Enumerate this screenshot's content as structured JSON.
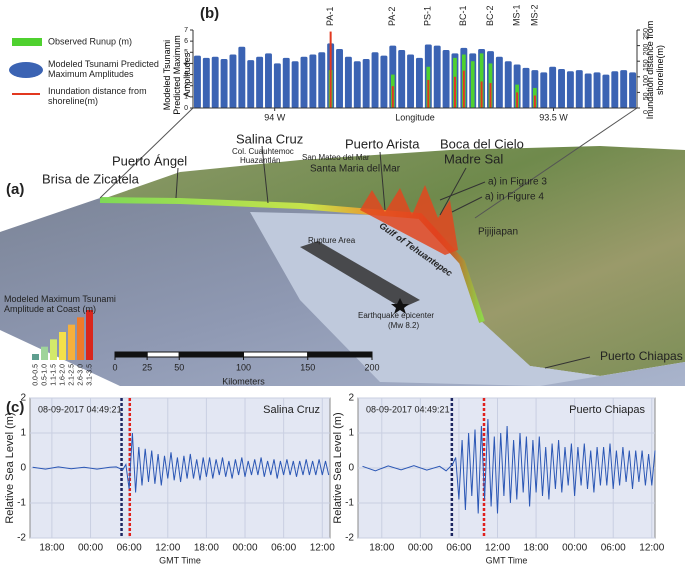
{
  "panel_labels": {
    "a": "(a)",
    "b": "(b)",
    "c": "(c)"
  },
  "chart_data": [
    {
      "type": "bar",
      "categories": [
        null,
        null,
        null,
        null,
        null,
        null,
        null,
        null,
        null,
        null,
        null,
        null,
        null,
        null,
        null,
        "PA-1",
        null,
        null,
        null,
        null,
        null,
        null,
        "PA-2",
        null,
        null,
        null,
        "PS-1",
        null,
        null,
        null,
        "BC-1",
        null,
        null,
        "BC-2",
        null,
        null,
        "MS-1",
        null,
        "MS-2",
        null,
        null,
        null,
        null,
        null,
        null,
        null,
        null,
        null,
        null,
        null
      ],
      "series": [
        {
          "name": "Observed Runup (m)",
          "color": "#4fd12f",
          "values": [
            null,
            null,
            null,
            null,
            null,
            null,
            null,
            null,
            null,
            null,
            null,
            null,
            null,
            null,
            null,
            3.4,
            null,
            null,
            null,
            null,
            null,
            null,
            3.0,
            null,
            null,
            null,
            3.7,
            null,
            null,
            4.5,
            4.8,
            4.2,
            4.9,
            4.0,
            null,
            null,
            2.1,
            null,
            1.8,
            null,
            null,
            null,
            null,
            null,
            null,
            null,
            null,
            null,
            null,
            null
          ]
        },
        {
          "name": "Modeled Tsunami Predicted Maximum Amplitudes",
          "color": "#3b63b3",
          "values": [
            4.7,
            4.5,
            4.6,
            4.4,
            4.8,
            5.5,
            4.3,
            4.6,
            4.9,
            4.0,
            4.5,
            4.2,
            4.6,
            4.8,
            5.0,
            5.8,
            5.3,
            4.6,
            4.2,
            4.4,
            5.0,
            4.7,
            5.6,
            5.2,
            4.8,
            4.5,
            5.7,
            5.6,
            5.2,
            4.9,
            5.4,
            4.9,
            5.3,
            5.1,
            4.6,
            4.2,
            3.9,
            3.6,
            3.4,
            3.2,
            3.7,
            3.5,
            3.3,
            3.4,
            3.1,
            3.2,
            3.0,
            3.3,
            3.4,
            3.2
          ]
        },
        {
          "name": "Inundation distance from shoreline(m)",
          "color": "#e2381f",
          "axis": "y2",
          "values": [
            null,
            null,
            null,
            null,
            null,
            null,
            null,
            null,
            null,
            null,
            null,
            null,
            null,
            null,
            null,
            245,
            null,
            null,
            null,
            null,
            null,
            null,
            70,
            null,
            null,
            null,
            90,
            null,
            null,
            100,
            120,
            null,
            85,
            80,
            null,
            null,
            50,
            null,
            40,
            null,
            null,
            null,
            null,
            null,
            null,
            null,
            null,
            null,
            null,
            null
          ]
        }
      ],
      "ylim": [
        0,
        7
      ],
      "yticks": [
        0,
        1,
        2,
        3,
        4,
        5,
        6,
        7
      ],
      "y2lim": [
        0,
        250
      ],
      "y2ticks": [
        0,
        50,
        100,
        150,
        200,
        250
      ],
      "xticks": [
        {
          "value": 8.7,
          "label": "94 W"
        },
        {
          "value": 40.1,
          "label": "93.5 W"
        }
      ],
      "xlabel": "Longitude",
      "ylabel": "Modeled Tsunami Predicted Maximum Amplitudes",
      "y2label": "Inundation distance from shoreline(m)"
    },
    {
      "type": "line",
      "title": "Salina Cruz",
      "annotation": "08-09-2017 04:49:21",
      "color": "#2b57b5",
      "grid": true,
      "x": [
        -3,
        -1,
        1,
        3,
        5,
        7,
        9,
        10,
        11,
        11.5,
        12,
        12.5,
        13,
        13.5,
        14,
        14.5,
        15,
        15.5,
        16,
        16.5,
        17,
        17.5,
        18,
        18.5,
        19,
        19.5,
        20,
        20.5,
        21,
        21.5,
        22,
        22.5,
        23,
        23.5,
        24,
        24.5,
        25,
        25.5,
        26,
        26.5,
        27,
        27.5,
        28,
        28.5,
        29,
        29.5,
        30,
        30.5,
        31,
        31.5,
        32,
        32.5,
        33,
        33.5,
        34,
        34.5,
        35,
        35.5,
        36,
        36.5,
        37,
        37.5,
        38,
        38.5,
        39,
        39.5,
        40,
        40.5,
        41,
        41.5,
        42,
        42.5,
        43
      ],
      "values": [
        0.02,
        -0.03,
        0.03,
        -0.02,
        0.02,
        -0.03,
        0.02,
        0.03,
        -0.05,
        0.1,
        -0.6,
        1.0,
        -0.7,
        0.6,
        -0.5,
        0.55,
        -0.4,
        0.5,
        -0.45,
        0.4,
        -0.5,
        0.35,
        -0.3,
        0.45,
        -0.35,
        0.3,
        -0.4,
        0.35,
        -0.3,
        0.4,
        -0.3,
        0.25,
        -0.35,
        0.3,
        -0.25,
        0.3,
        -0.3,
        0.25,
        -0.2,
        0.3,
        -0.25,
        0.2,
        -0.3,
        0.25,
        -0.2,
        0.3,
        -0.25,
        0.2,
        -0.2,
        0.25,
        -0.2,
        0.3,
        -0.25,
        0.2,
        -0.2,
        0.25,
        -0.3,
        0.2,
        -0.2,
        0.25,
        -0.2,
        0.2,
        -0.25,
        0.2,
        -0.2,
        0.25,
        -0.2,
        0.2,
        -0.2,
        0.25,
        -0.2,
        0.2,
        -0.2
      ],
      "xlim": [
        -3.4,
        43.2
      ],
      "xticks": [
        {
          "value": 0,
          "label": "18:00"
        },
        {
          "value": 6,
          "label": "00:00"
        },
        {
          "value": 12,
          "label": "06:00"
        },
        {
          "value": 18,
          "label": "12:00"
        },
        {
          "value": 24,
          "label": "18:00"
        },
        {
          "value": 30,
          "label": "00:00"
        },
        {
          "value": 36,
          "label": "06:00"
        },
        {
          "value": 42,
          "label": "12:00"
        }
      ],
      "ylim": [
        -2,
        2
      ],
      "yticks": [
        -2,
        -1,
        0,
        1,
        2
      ],
      "vlines": [
        {
          "x": 10.82,
          "color": "#1b2560"
        },
        {
          "x": 12.1,
          "color": "#e0201c"
        }
      ],
      "xlabel": "GMT Time",
      "ylabel": "Relative Sea Level (m)"
    },
    {
      "type": "line",
      "title": "Puerto Chiapas",
      "annotation": "08-09-2017 04:49:21",
      "color": "#2b57b5",
      "grid": true,
      "x": [
        -3,
        -1,
        1,
        3,
        5,
        7,
        9,
        10,
        11,
        11.5,
        12,
        12.5,
        13,
        13.5,
        14,
        14.5,
        15,
        15.5,
        16,
        16.5,
        17,
        17.5,
        18,
        18.5,
        19,
        19.5,
        20,
        20.5,
        21,
        21.5,
        22,
        22.5,
        23,
        23.5,
        24,
        24.5,
        25,
        25.5,
        26,
        26.5,
        27,
        27.5,
        28,
        28.5,
        29,
        29.5,
        30,
        30.5,
        31,
        31.5,
        32,
        32.5,
        33,
        33.5,
        34,
        34.5,
        35,
        35.5,
        36,
        36.5,
        37,
        37.5,
        38,
        38.5,
        39,
        39.5,
        40,
        40.5,
        41,
        41.5,
        42,
        42.5
      ],
      "values": [
        0.05,
        -0.08,
        0.06,
        -0.05,
        0.07,
        -0.06,
        0.05,
        -0.08,
        0.1,
        0.3,
        -0.9,
        0.8,
        -1.2,
        1.0,
        -0.8,
        1.1,
        -1.3,
        1.2,
        -0.9,
        1.4,
        -1.1,
        0.9,
        -1.3,
        1.0,
        -0.8,
        1.2,
        -1.0,
        0.8,
        -0.9,
        1.0,
        -0.7,
        0.9,
        -1.1,
        0.8,
        -0.7,
        0.9,
        -0.8,
        0.6,
        -0.9,
        0.7,
        -0.6,
        0.8,
        -0.7,
        0.6,
        -0.5,
        0.7,
        -0.8,
        0.6,
        -0.5,
        0.7,
        -0.6,
        0.5,
        -0.7,
        0.6,
        -0.5,
        0.6,
        -0.5,
        0.7,
        -0.6,
        0.5,
        -0.5,
        0.6,
        -0.4,
        0.5,
        -0.6,
        0.5,
        -0.4,
        0.5,
        -0.5,
        0.4,
        -0.5,
        0.5
      ],
      "xlim": [
        -3.7,
        42.5
      ],
      "xticks": [
        {
          "value": 0,
          "label": "18:00"
        },
        {
          "value": 6,
          "label": "00:00"
        },
        {
          "value": 12,
          "label": "06:00"
        },
        {
          "value": 18,
          "label": "12:00"
        },
        {
          "value": 24,
          "label": "18:00"
        },
        {
          "value": 30,
          "label": "00:00"
        },
        {
          "value": 36,
          "label": "06:00"
        },
        {
          "value": 42,
          "label": "12:00"
        }
      ],
      "ylim": [
        -2,
        2
      ],
      "yticks": [
        -2,
        -1,
        0,
        1,
        2
      ],
      "vlines": [
        {
          "x": 10.9,
          "color": "#1b2560"
        },
        {
          "x": 15.9,
          "color": "#e0201c"
        }
      ],
      "xlabel": "GMT Time",
      "ylabel": "Relative Sea Level (m)"
    }
  ],
  "map": {
    "labels": [
      "Puerto Ángel",
      "Brisa de Zicatela",
      "Salina Cruz",
      "Col. Cuauhtemoc",
      "Huazantlán",
      "San Mateo del Mar",
      "Santa Maria del Mar",
      "Puerto Arista",
      "Boca del Cielo",
      "Madre Sal",
      "a) in Figure 3",
      "a) in Figure 4",
      "Pijijiapan",
      "Rupture Area",
      "Gulf of Tehuantepec",
      "Earthquake epicenter",
      "(Mw 8.2)",
      "Puerto Chiapas"
    ],
    "amplitude_legend": {
      "title": "Modeled Maximum Tsunami Amplitude at Coast (m)",
      "classes": [
        {
          "label": "0.0-0.5",
          "color": "#5f9e8f"
        },
        {
          "label": "0.5-1.0",
          "color": "#9fd49a"
        },
        {
          "label": "1.1-1.5",
          "color": "#d3e96a"
        },
        {
          "label": "1.6-2.0",
          "color": "#f4e04a"
        },
        {
          "label": "2.1-2.5",
          "color": "#f6b03c"
        },
        {
          "label": "2.6-3.0",
          "color": "#ee7a2a"
        },
        {
          "label": "3.1-3.5",
          "color": "#d9261c"
        }
      ]
    },
    "scale_bar": {
      "ticks": [
        0,
        25,
        50,
        100,
        150,
        200
      ],
      "unit": "Kilometers"
    }
  }
}
